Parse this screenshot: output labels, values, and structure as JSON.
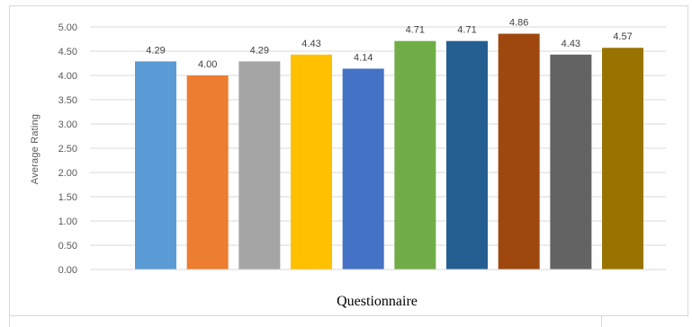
{
  "chart_data": {
    "type": "bar",
    "xlabel": "Questionnaire",
    "ylabel": "Average Rating",
    "ylim": [
      0,
      5
    ],
    "yticks": [
      "0.00",
      "0.50",
      "1.00",
      "1.50",
      "2.00",
      "2.50",
      "3.00",
      "3.50",
      "4.00",
      "4.50",
      "5.00"
    ],
    "grid": true,
    "values": [
      4.29,
      4.0,
      4.29,
      4.43,
      4.14,
      4.71,
      4.71,
      4.86,
      4.43,
      4.57
    ],
    "data_labels": [
      "4.29",
      "4.00",
      "4.29",
      "4.43",
      "4.14",
      "4.71",
      "4.71",
      "4.86",
      "4.43",
      "4.57"
    ],
    "colors": [
      "#5B9BD5",
      "#ED7D31",
      "#A5A5A5",
      "#FFC000",
      "#4472C4",
      "#70AD47",
      "#255E91",
      "#9E480E",
      "#636363",
      "#997300"
    ]
  }
}
